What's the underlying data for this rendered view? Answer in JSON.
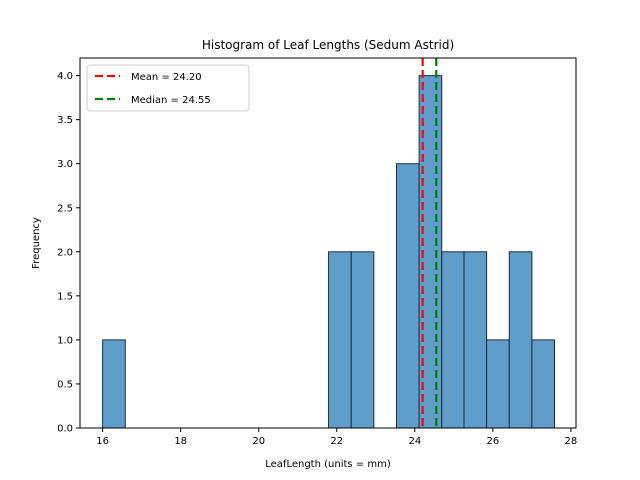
{
  "chart_data": {
    "type": "bar",
    "title": "Histogram of Leaf Lengths (Sedum Astrid)",
    "xlabel": "LeafLength (units = mm)",
    "ylabel": "Frequency",
    "xlim": [
      15.42,
      28.13
    ],
    "ylim": [
      0,
      4.2
    ],
    "xticks": [
      16,
      18,
      20,
      22,
      24,
      26,
      28
    ],
    "yticks": [
      0.0,
      0.5,
      1.0,
      1.5,
      2.0,
      2.5,
      3.0,
      3.5,
      4.0
    ],
    "ytick_labels": [
      "0.0",
      "0.5",
      "1.0",
      "1.5",
      "2.0",
      "2.5",
      "3.0",
      "3.5",
      "4.0"
    ],
    "bins": [
      {
        "start": 16.0,
        "end": 16.58,
        "count": 1
      },
      {
        "start": 21.79,
        "end": 22.37,
        "count": 2
      },
      {
        "start": 22.37,
        "end": 22.95,
        "count": 2
      },
      {
        "start": 23.53,
        "end": 24.11,
        "count": 3
      },
      {
        "start": 24.11,
        "end": 24.69,
        "count": 4
      },
      {
        "start": 24.69,
        "end": 25.26,
        "count": 2
      },
      {
        "start": 25.26,
        "end": 25.84,
        "count": 2
      },
      {
        "start": 25.84,
        "end": 26.42,
        "count": 1
      },
      {
        "start": 26.42,
        "end": 27.0,
        "count": 2
      },
      {
        "start": 27.0,
        "end": 27.58,
        "count": 1
      }
    ],
    "bar_color": "#5f9ecb",
    "bar_edge_color": "#1f2b38",
    "reference_lines": [
      {
        "label": "Mean = 24.20",
        "value": 24.2,
        "color": "#ff0000"
      },
      {
        "label": "Median = 24.55",
        "value": 24.55,
        "color": "#008000"
      }
    ],
    "legend_position": "upper-left",
    "grid": false
  }
}
